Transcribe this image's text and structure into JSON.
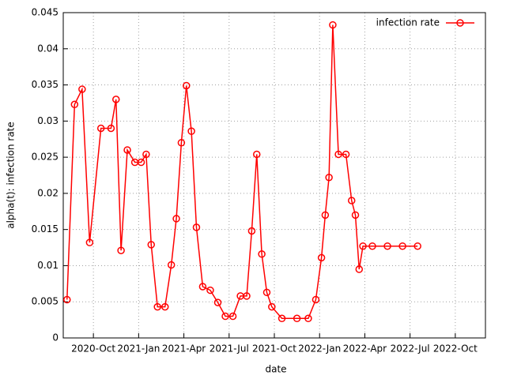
{
  "chart_data": {
    "type": "line",
    "x_label": "date",
    "y_label": "alpha(t): infection rate",
    "x": [
      "2020-08",
      "2020-08",
      "2020-09",
      "2020-09",
      "2020-10",
      "2020-11",
      "2020-11",
      "2020-11",
      "2020-12",
      "2020-12",
      "2021-01",
      "2021-01",
      "2021-01",
      "2021-02",
      "2021-02",
      "2021-03",
      "2021-03",
      "2021-03",
      "2021-04",
      "2021-04",
      "2021-04",
      "2021-05",
      "2021-05",
      "2021-06",
      "2021-06",
      "2021-07",
      "2021-07",
      "2021-08",
      "2021-08",
      "2021-08",
      "2021-09",
      "2021-09",
      "2021-09",
      "2021-10",
      "2021-11",
      "2021-12",
      "2021-12",
      "2022-01",
      "2022-01",
      "2022-01",
      "2022-01",
      "2022-02",
      "2022-02",
      "2022-03",
      "2022-03",
      "2022-03",
      "2022-03",
      "2022-04",
      "2022-05",
      "2022-06",
      "2022-07"
    ],
    "series": [
      {
        "name": "infection rate",
        "color": "#ff0000",
        "values": [
          0.0053,
          0.0323,
          0.0344,
          0.0132,
          0.029,
          0.029,
          0.033,
          0.0121,
          0.026,
          0.0243,
          0.0243,
          0.0254,
          0.0129,
          0.0043,
          0.0043,
          0.0101,
          0.0165,
          0.027,
          0.0349,
          0.0286,
          0.0153,
          0.0071,
          0.0066,
          0.0049,
          0.003,
          0.003,
          0.0058,
          0.0058,
          0.0148,
          0.0254,
          0.0116,
          0.0063,
          0.0043,
          0.0027,
          0.0027,
          0.0027,
          0.0053,
          0.0111,
          0.017,
          0.0222,
          0.0433,
          0.0254,
          0.0254,
          0.019,
          0.017,
          0.0095,
          0.0127,
          0.0127,
          0.0127,
          0.0127,
          0.0127
        ]
      }
    ],
    "xlim": [
      "2020-08",
      "2022-12"
    ],
    "xticks": [
      {
        "value": "2020-10",
        "label": "2020-Oct"
      },
      {
        "value": "2021-01",
        "label": "2021-Jan"
      },
      {
        "value": "2021-04",
        "label": "2021-Apr"
      },
      {
        "value": "2021-07",
        "label": "2021-Jul"
      },
      {
        "value": "2021-10",
        "label": "2021-Oct"
      },
      {
        "value": "2022-01",
        "label": "2022-Jan"
      },
      {
        "value": "2022-04",
        "label": "2022-Apr"
      },
      {
        "value": "2022-07",
        "label": "2022-Jul"
      },
      {
        "value": "2022-10",
        "label": "2022-Oct"
      }
    ],
    "ylim": [
      0,
      0.045
    ],
    "yticks": [
      0,
      0.005,
      0.01,
      0.015,
      0.02,
      0.025,
      0.03,
      0.035,
      0.04,
      0.045
    ],
    "grid": true,
    "legend": "top-right"
  }
}
